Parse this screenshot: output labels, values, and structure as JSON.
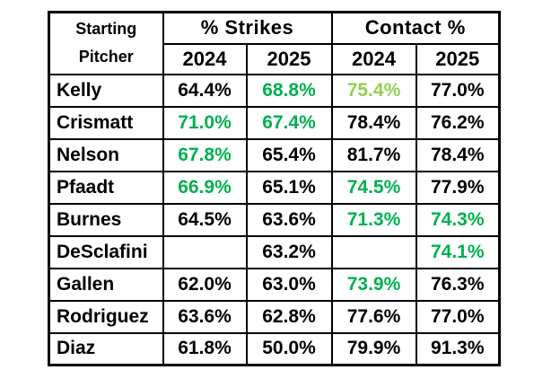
{
  "table": {
    "header": {
      "pitcher_line1": "Starting",
      "pitcher_line2": "Pitcher",
      "strikes": "% Strikes",
      "contact": "Contact %"
    },
    "year_headers": [
      "2024",
      "2025",
      "2024",
      "2025"
    ],
    "colors": {
      "black": "#000000",
      "green": "#00B050",
      "lightgreen": "#92D050",
      "highlight_border": "#3fb068",
      "grid": "#000000",
      "background": "#ffffff"
    },
    "rows": [
      {
        "pitcher": "Kelly",
        "cells": [
          {
            "v": "64.4%",
            "c": "black"
          },
          {
            "v": "68.8%",
            "c": "green"
          },
          {
            "v": "75.4%",
            "c": "lightgreen"
          },
          {
            "v": "77.0%",
            "c": "black"
          }
        ]
      },
      {
        "pitcher": "Crismatt",
        "cells": [
          {
            "v": "71.0%",
            "c": "green",
            "hl": true
          },
          {
            "v": "67.4%",
            "c": "green"
          },
          {
            "v": "78.4%",
            "c": "black"
          },
          {
            "v": "76.2%",
            "c": "black"
          }
        ]
      },
      {
        "pitcher": "Nelson",
        "cells": [
          {
            "v": "67.8%",
            "c": "green"
          },
          {
            "v": "65.4%",
            "c": "black"
          },
          {
            "v": "81.7%",
            "c": "black"
          },
          {
            "v": "78.4%",
            "c": "black"
          }
        ]
      },
      {
        "pitcher": "Pfaadt",
        "cells": [
          {
            "v": "66.9%",
            "c": "green"
          },
          {
            "v": "65.1%",
            "c": "black"
          },
          {
            "v": "74.5%",
            "c": "green"
          },
          {
            "v": "77.9%",
            "c": "black"
          }
        ]
      },
      {
        "pitcher": "Burnes",
        "cells": [
          {
            "v": "64.5%",
            "c": "black"
          },
          {
            "v": "63.6%",
            "c": "black"
          },
          {
            "v": "71.3%",
            "c": "green"
          },
          {
            "v": "74.3%",
            "c": "green"
          }
        ]
      },
      {
        "pitcher": "DeSclafini",
        "cells": [
          {
            "v": "",
            "c": "black"
          },
          {
            "v": "63.2%",
            "c": "black"
          },
          {
            "v": "",
            "c": "black"
          },
          {
            "v": "74.1%",
            "c": "green"
          }
        ]
      },
      {
        "pitcher": "Gallen",
        "cells": [
          {
            "v": "62.0%",
            "c": "black"
          },
          {
            "v": "63.0%",
            "c": "black"
          },
          {
            "v": "73.9%",
            "c": "green"
          },
          {
            "v": "76.3%",
            "c": "black"
          }
        ]
      },
      {
        "pitcher": "Rodriguez",
        "cells": [
          {
            "v": "63.6%",
            "c": "black"
          },
          {
            "v": "62.8%",
            "c": "black"
          },
          {
            "v": "77.6%",
            "c": "black"
          },
          {
            "v": "77.0%",
            "c": "black"
          }
        ]
      },
      {
        "pitcher": "Diaz",
        "cells": [
          {
            "v": "61.8%",
            "c": "black"
          },
          {
            "v": "50.0%",
            "c": "black"
          },
          {
            "v": "79.9%",
            "c": "black"
          },
          {
            "v": "91.3%",
            "c": "black"
          }
        ]
      }
    ]
  },
  "chart_data": {
    "type": "table",
    "title": "",
    "column_groups": [
      "Starting Pitcher",
      "% Strikes",
      "Contact %"
    ],
    "columns": [
      "Starting Pitcher",
      "% Strikes 2024",
      "% Strikes 2025",
      "Contact % 2024",
      "Contact % 2025"
    ],
    "rows": [
      [
        "Kelly",
        "64.4%",
        "68.8%",
        "75.4%",
        "77.0%"
      ],
      [
        "Crismatt",
        "71.0%",
        "67.4%",
        "78.4%",
        "76.2%"
      ],
      [
        "Nelson",
        "67.8%",
        "65.4%",
        "81.7%",
        "78.4%"
      ],
      [
        "Pfaadt",
        "66.9%",
        "65.1%",
        "74.5%",
        "77.9%"
      ],
      [
        "Burnes",
        "64.5%",
        "63.6%",
        "71.3%",
        "74.3%"
      ],
      [
        "DeSclafini",
        "",
        "63.2%",
        "",
        "74.1%"
      ],
      [
        "Gallen",
        "62.0%",
        "63.0%",
        "73.9%",
        "76.3%"
      ],
      [
        "Rodriguez",
        "63.6%",
        "62.8%",
        "77.6%",
        "77.0%"
      ],
      [
        "Diaz",
        "61.8%",
        "50.0%",
        "79.9%",
        "91.3%"
      ]
    ],
    "notes": {
      "green_cells": "values colored green indicate highlighted stats; Kelly Contact % 2024 (75.4%) is light green; Crismatt % Strikes 2024 (71.0%) has a green cell border",
      "grid": "on",
      "legend_position": "none"
    }
  }
}
